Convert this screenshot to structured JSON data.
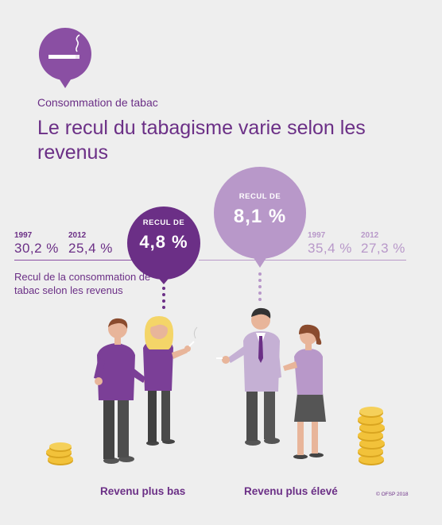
{
  "header": {
    "subtitle": "Consommation de tabac",
    "title": "Le recul du tabagisme varie selon les revenus"
  },
  "low_income": {
    "year_start": "1997",
    "value_start": "30,2 %",
    "year_end": "2012",
    "value_end": "25,4 %",
    "bubble_label": "RECUL DE",
    "bubble_value": "4,8 %",
    "group_label": "Revenu plus bas"
  },
  "high_income": {
    "year_start": "1997",
    "value_start": "35,4 %",
    "year_end": "2012",
    "value_end": "27,3 %",
    "bubble_label": "RECUL DE",
    "bubble_value": "8,1 %",
    "group_label": "Revenu plus élevé"
  },
  "caption": "Recul de la consommation de tabac selon les revenus",
  "copyright": "© OFSP 2018",
  "colors": {
    "dark_purple": "#6b2f86",
    "mid_purple": "#8a4fa3",
    "light_purple": "#b898c9",
    "background": "#eeeeee",
    "coin": "#f2c23a"
  },
  "icons": [
    "cigarette-icon",
    "coins-icon"
  ]
}
